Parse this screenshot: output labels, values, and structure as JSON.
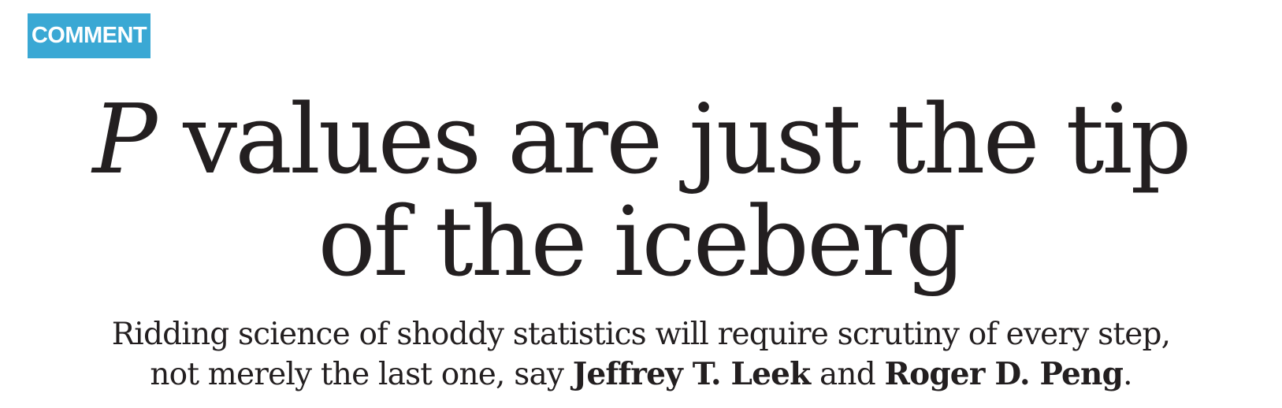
{
  "section_tag": "COMMENT",
  "headline": {
    "italic_prefix": "P",
    "line1_rest": " values are just the tip",
    "line2": "of the iceberg"
  },
  "standfirst": {
    "line1": "Ridding science of shoddy statistics will require scrutiny of every step,",
    "line2_prefix": "not merely the last one, say ",
    "author1": "Jeffrey T. Leek",
    "joiner": " and ",
    "author2": "Roger D. Peng",
    "suffix": "."
  }
}
